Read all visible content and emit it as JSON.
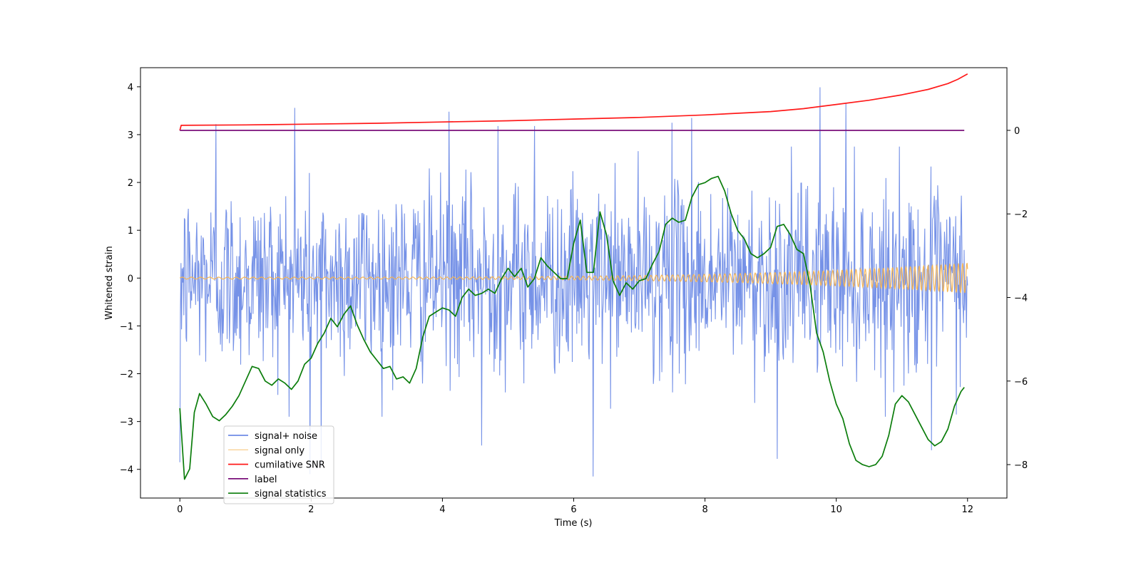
{
  "chart_data": {
    "type": "line",
    "xlabel": "Time (s)",
    "ylabel": "Whitened strain",
    "y2label": "",
    "xlim": [
      -0.6,
      12.6
    ],
    "ylim": [
      -4.6,
      4.4
    ],
    "y2lim": [
      -8.8,
      1.5
    ],
    "xticks": [
      0,
      2,
      4,
      6,
      8,
      10,
      12
    ],
    "yticks": [
      -4,
      -3,
      -2,
      -1,
      0,
      1,
      2,
      3,
      4
    ],
    "y2ticks": [
      -8,
      -6,
      -4,
      -2,
      0
    ],
    "xtick_labels": [
      "0",
      "2",
      "4",
      "6",
      "8",
      "10",
      "12"
    ],
    "ytick_labels": [
      "−4",
      "−3",
      "−2",
      "−1",
      "0",
      "1",
      "2",
      "3",
      "4"
    ],
    "y2tick_labels": [
      "−8",
      "−6",
      "−4",
      "−2",
      "0"
    ],
    "grid": false,
    "legend_position": "lower-left",
    "series": [
      {
        "name": "signal+ noise",
        "axis": "left",
        "color": "#6f8ce6",
        "style": "noise",
        "x_range": [
          0,
          12
        ],
        "envelope_sigma": 0.95,
        "peaks": [
          [
            0.55,
            3.22
          ],
          [
            1.75,
            3.56
          ],
          [
            4.1,
            3.48
          ],
          [
            4.85,
            3.18
          ],
          [
            5.4,
            3.18
          ],
          [
            7.5,
            3.25
          ],
          [
            7.8,
            3.35
          ],
          [
            9.75,
            3.99
          ],
          [
            10.15,
            3.66
          ],
          [
            1.98,
            -4.1
          ],
          [
            2.15,
            -3.95
          ],
          [
            4.6,
            -3.5
          ],
          [
            6.3,
            -4.15
          ],
          [
            9.1,
            -3.78
          ],
          [
            11.45,
            -3.6
          ],
          [
            0.0,
            -3.85
          ]
        ]
      },
      {
        "name": "signal only",
        "axis": "left",
        "color": "#f5b556",
        "style": "chirp",
        "x_range": [
          0,
          12
        ],
        "amplitude_start": 0.02,
        "amplitude_end": 0.32
      },
      {
        "name": "cumilative SNR",
        "axis": "right",
        "color": "#ff1a1a",
        "x": [
          0,
          0.02,
          1,
          2,
          3,
          4,
          5,
          6,
          7,
          8,
          9,
          9.5,
          10,
          10.5,
          11,
          11.4,
          11.7,
          11.85,
          12
        ],
        "y": [
          0.0,
          0.12,
          0.13,
          0.15,
          0.17,
          0.2,
          0.23,
          0.27,
          0.31,
          0.37,
          0.45,
          0.52,
          0.62,
          0.72,
          0.85,
          0.98,
          1.12,
          1.22,
          1.35
        ]
      },
      {
        "name": "label",
        "axis": "right",
        "color": "#7a0f7a",
        "x": [
          0,
          11.95
        ],
        "y": [
          0,
          0
        ]
      },
      {
        "name": "signal statistics",
        "axis": "right",
        "color": "#0b7d0b",
        "x": [
          0,
          0.07,
          0.15,
          0.22,
          0.3,
          0.4,
          0.5,
          0.6,
          0.7,
          0.8,
          0.9,
          1.0,
          1.1,
          1.2,
          1.3,
          1.4,
          1.5,
          1.6,
          1.7,
          1.8,
          1.9,
          2.0,
          2.1,
          2.2,
          2.3,
          2.4,
          2.5,
          2.6,
          2.7,
          2.8,
          2.9,
          3.0,
          3.1,
          3.2,
          3.3,
          3.4,
          3.5,
          3.6,
          3.7,
          3.8,
          3.9,
          4.0,
          4.1,
          4.2,
          4.3,
          4.4,
          4.5,
          4.6,
          4.7,
          4.8,
          4.9,
          5.0,
          5.1,
          5.2,
          5.3,
          5.4,
          5.5,
          5.6,
          5.7,
          5.8,
          5.9,
          6.0,
          6.1,
          6.2,
          6.3,
          6.4,
          6.5,
          6.6,
          6.7,
          6.8,
          6.9,
          7.0,
          7.1,
          7.2,
          7.3,
          7.4,
          7.5,
          7.6,
          7.7,
          7.8,
          7.9,
          8.0,
          8.1,
          8.2,
          8.3,
          8.4,
          8.5,
          8.6,
          8.7,
          8.8,
          8.9,
          9.0,
          9.1,
          9.2,
          9.3,
          9.4,
          9.5,
          9.6,
          9.7,
          9.8,
          9.9,
          10.0,
          10.1,
          10.2,
          10.3,
          10.4,
          10.5,
          10.6,
          10.7,
          10.8,
          10.9,
          11.0,
          11.1,
          11.2,
          11.3,
          11.4,
          11.5,
          11.6,
          11.7,
          11.8,
          11.9,
          11.95
        ],
        "y": [
          -6.65,
          -8.35,
          -8.1,
          -6.75,
          -6.3,
          -6.55,
          -6.85,
          -6.95,
          -6.8,
          -6.6,
          -6.35,
          -6.0,
          -5.65,
          -5.7,
          -6.0,
          -6.1,
          -5.95,
          -6.05,
          -6.2,
          -6.0,
          -5.6,
          -5.45,
          -5.1,
          -4.85,
          -4.5,
          -4.7,
          -4.4,
          -4.2,
          -4.65,
          -5.0,
          -5.3,
          -5.5,
          -5.7,
          -5.65,
          -5.95,
          -5.9,
          -6.05,
          -5.7,
          -4.95,
          -4.45,
          -4.35,
          -4.25,
          -4.3,
          -4.45,
          -4.0,
          -3.8,
          -3.95,
          -3.9,
          -3.8,
          -3.9,
          -3.55,
          -3.3,
          -3.5,
          -3.3,
          -3.75,
          -3.55,
          -3.05,
          -3.25,
          -3.4,
          -3.55,
          -3.55,
          -2.7,
          -2.15,
          -3.4,
          -3.4,
          -1.95,
          -2.5,
          -3.6,
          -3.95,
          -3.65,
          -3.8,
          -3.6,
          -3.55,
          -3.2,
          -2.9,
          -2.25,
          -2.1,
          -2.2,
          -2.15,
          -1.6,
          -1.3,
          -1.25,
          -1.15,
          -1.1,
          -1.45,
          -2.0,
          -2.4,
          -2.6,
          -2.95,
          -3.05,
          -2.95,
          -2.8,
          -2.3,
          -2.25,
          -2.5,
          -2.85,
          -2.95,
          -3.7,
          -4.85,
          -5.3,
          -6.0,
          -6.55,
          -6.9,
          -7.5,
          -7.9,
          -8.0,
          -8.05,
          -8.0,
          -7.8,
          -7.3,
          -6.55,
          -6.35,
          -6.5,
          -6.8,
          -7.1,
          -7.4,
          -7.55,
          -7.45,
          -7.15,
          -6.6,
          -6.25,
          -6.15
        ]
      }
    ]
  }
}
